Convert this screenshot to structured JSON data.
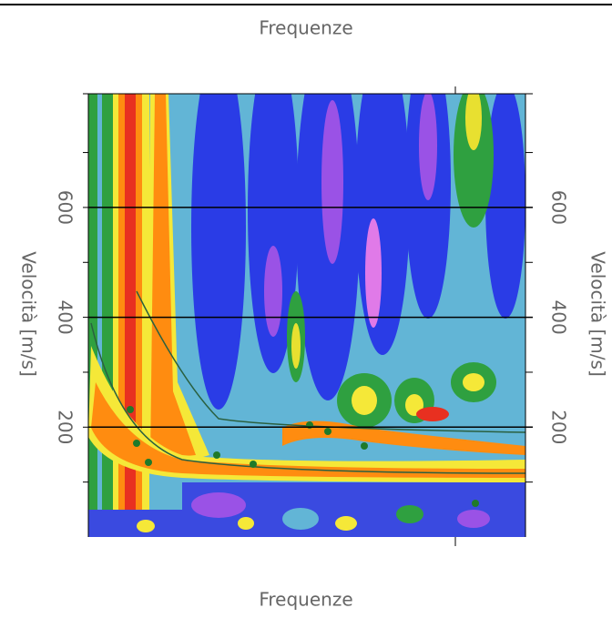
{
  "chart_data": {
    "type": "contour",
    "title": "Frequenze",
    "xlabel": "Frequenze",
    "ylabel": "Velocità [m/s]",
    "ylim": [
      0,
      807
    ],
    "yticks": [
      200,
      400,
      600
    ],
    "minor_yticks": [
      100,
      300,
      500,
      700
    ],
    "grid": true,
    "grid_color": "#000000"
  }
}
